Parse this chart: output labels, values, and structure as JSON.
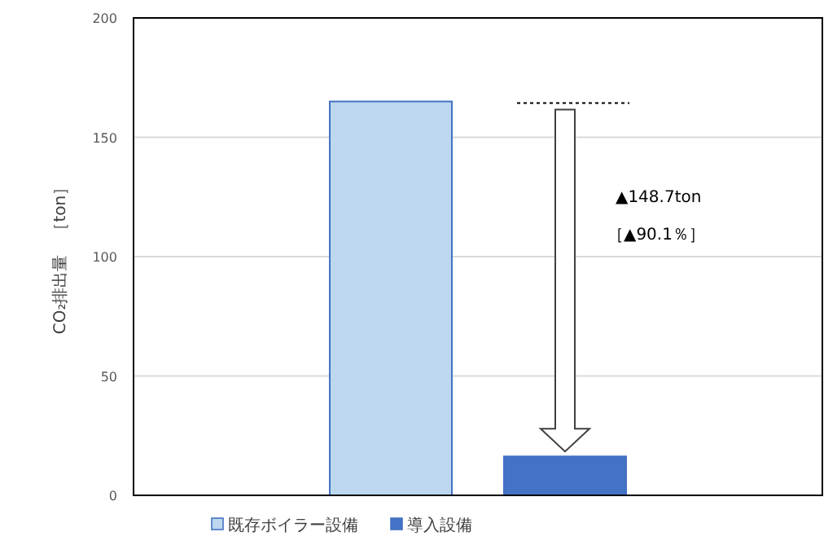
{
  "chart_data": {
    "type": "bar",
    "categories": [
      null
    ],
    "series": [
      {
        "name": "既存ボイラー設備",
        "color": "#bdd7ee",
        "values": [
          165.0
        ]
      },
      {
        "name": "導入設備",
        "color": "#4472c4",
        "values": [
          16.3
        ]
      }
    ],
    "ylabel": "CO₂排出量　［ton］",
    "ylim": [
      0,
      200
    ],
    "yticks": [
      0,
      50,
      100,
      150,
      200
    ],
    "grid": "y",
    "legend": "bottom",
    "annotations": [
      "▲148.7ton",
      "［▲90.1％］"
    ]
  }
}
